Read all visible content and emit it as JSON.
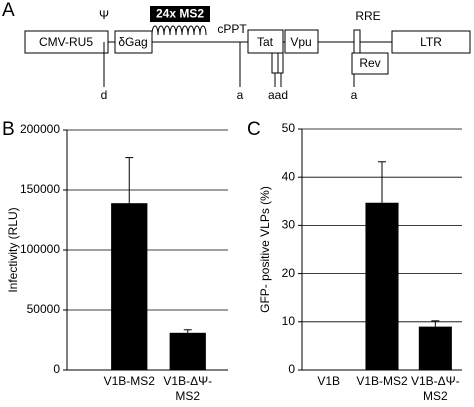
{
  "diagram": {
    "panel": "A",
    "psi": "Ψ",
    "ms2": "24x MS2",
    "cppt": "cPPT",
    "rre": "RRE",
    "cmv": "CMV-RU5",
    "gag": "δGag",
    "tat": "Tat",
    "vpu": "Vpu",
    "ltr": "LTR",
    "rev": "Rev",
    "site1": "d",
    "site2": "a",
    "site3": "aad",
    "site4": "a"
  },
  "chart_data": [
    {
      "type": "bar",
      "panel": "B",
      "ylabel": "Infectivity (RLU)",
      "categories": [
        "V1B-MS2",
        "V1B-ΔΨ-MS2"
      ],
      "values": [
        139000,
        31000
      ],
      "errors": [
        38000,
        2500
      ],
      "color": "#000000",
      "ylim": [
        0,
        200000
      ],
      "yticks": [
        0,
        50000,
        100000,
        150000,
        200000
      ],
      "grid": true
    },
    {
      "type": "bar",
      "panel": "C",
      "ylabel": "GFP- positive VLPs (%)",
      "categories": [
        "V1B",
        "V1B-MS2",
        "V1B-ΔΨ-MS2"
      ],
      "values": [
        0,
        34.7,
        9
      ],
      "errors": [
        null,
        8.5,
        1.2
      ],
      "color": "#000000",
      "ylim": [
        0,
        50
      ],
      "yticks": [
        0,
        10,
        20,
        30,
        40,
        50
      ],
      "grid": true
    }
  ]
}
